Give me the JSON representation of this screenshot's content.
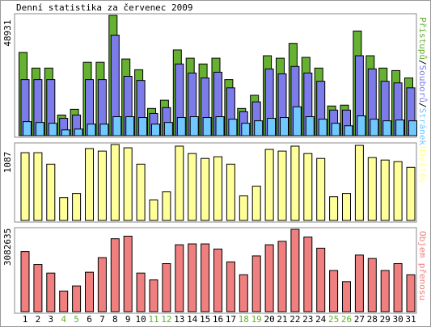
{
  "chart_data": [
    {
      "type": "bar",
      "title": "Denní statistika za červenec 2009",
      "legend_separator": "/",
      "ylim": [
        0,
        48931
      ],
      "yticks": [
        48931
      ],
      "series": [
        {
          "name": "Přístupů",
          "color": "#66b032",
          "values": [
            33850,
            27480,
            27480,
            8380,
            10720,
            29830,
            29830,
            48931,
            31170,
            26810,
            11060,
            14410,
            34850,
            31500,
            29150,
            31500,
            22790,
            11060,
            16420,
            32500,
            31500,
            37530,
            31840,
            27480,
            12060,
            12400,
            42560,
            32500,
            27480,
            26470,
            23460
          ]
        },
        {
          "name": "Souborů",
          "color": "#7b7bea",
          "values": [
            22790,
            22790,
            22790,
            7040,
            8380,
            22790,
            22790,
            40880,
            24130,
            22450,
            9050,
            11390,
            29150,
            25470,
            23460,
            25800,
            19440,
            9720,
            13740,
            27140,
            25130,
            28150,
            25470,
            22120,
            10390,
            10390,
            32500,
            27140,
            22120,
            21450,
            19440
          ]
        },
        {
          "name": "Stránek",
          "color": "#70c8ff",
          "values": [
            5700,
            5360,
            5030,
            2350,
            2680,
            4690,
            4690,
            7710,
            7710,
            7370,
            4690,
            5360,
            7370,
            7710,
            7370,
            7710,
            6700,
            5030,
            6030,
            7040,
            7370,
            11730,
            7710,
            6700,
            5030,
            4020,
            8040,
            6700,
            6030,
            6360,
            6030
          ]
        }
      ]
    },
    {
      "type": "bar",
      "ylim": [
        0,
        1087
      ],
      "yticks": [
        1087
      ],
      "series": [
        {
          "name": "Návštěv",
          "color": "#ffff99",
          "values": [
            970,
            970,
            806,
            327,
            386,
            1029,
            993,
            1087,
            1040,
            806,
            292,
            409,
            1064,
            958,
            888,
            912,
            806,
            351,
            491,
            1017,
            993,
            1064,
            958,
            888,
            339,
            386,
            1075,
            900,
            865,
            842,
            760
          ]
        }
      ]
    },
    {
      "type": "bar",
      "ylim": [
        0,
        3082635
      ],
      "yticks": [
        3082635
      ],
      "series": [
        {
          "name": "Objem přenosu",
          "color": "#f08080",
          "values": [
            2247800,
            1766100,
            1445000,
            770700,
            963300,
            1477100,
            2023000,
            2729400,
            2825800,
            1445000,
            1188100,
            1798200,
            2504700,
            2536800,
            2536800,
            2344100,
            1862400,
            1380800,
            2087200,
            2504700,
            2633100,
            3082635,
            2793700,
            2376200,
            1541300,
            1123900,
            2119300,
            1990900,
            1541300,
            1798200,
            1380800
          ]
        }
      ],
      "categories": [
        "1",
        "2",
        "3",
        "4",
        "5",
        "6",
        "7",
        "8",
        "9",
        "10",
        "11",
        "12",
        "13",
        "14",
        "15",
        "16",
        "17",
        "18",
        "19",
        "20",
        "21",
        "22",
        "23",
        "24",
        "25",
        "26",
        "27",
        "28",
        "29",
        "30",
        "31"
      ],
      "category_colors": [
        "#000000",
        "#000000",
        "#000000",
        "#66b032",
        "#66b032",
        "#000000",
        "#000000",
        "#000000",
        "#000000",
        "#000000",
        "#66b032",
        "#66b032",
        "#000000",
        "#000000",
        "#000000",
        "#000000",
        "#000000",
        "#66b032",
        "#66b032",
        "#000000",
        "#000000",
        "#000000",
        "#000000",
        "#000000",
        "#66b032",
        "#66b032",
        "#000000",
        "#000000",
        "#000000",
        "#000000",
        "#000000"
      ]
    }
  ]
}
